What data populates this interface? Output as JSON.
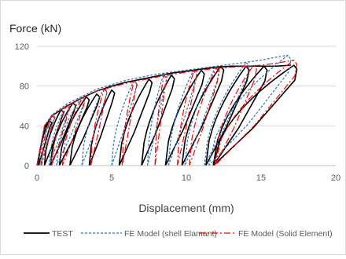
{
  "chart_data": {
    "type": "line",
    "ylabel": "Force (kN)",
    "xlabel": "Displacement (mm)",
    "xlim": [
      0,
      20
    ],
    "ylim": [
      0,
      120
    ],
    "x_ticks": [
      0,
      5,
      10,
      15,
      20
    ],
    "y_ticks": [
      0,
      40,
      80,
      120
    ],
    "grid": "horizontal",
    "legend_position": "bottom",
    "series": [
      {
        "name": "TEST",
        "color": "#000000",
        "dash": "solid",
        "envelope": [
          [
            0,
            0
          ],
          [
            0.5,
            38
          ],
          [
            1,
            50
          ],
          [
            2,
            60
          ],
          [
            3,
            68
          ],
          [
            4,
            75
          ],
          [
            5,
            80
          ],
          [
            6,
            84
          ],
          [
            7,
            87
          ],
          [
            8,
            90
          ],
          [
            9,
            93
          ],
          [
            10,
            95
          ],
          [
            11,
            97
          ],
          [
            12,
            99
          ],
          [
            13,
            100
          ],
          [
            14,
            100
          ],
          [
            15,
            100
          ],
          [
            16,
            100
          ],
          [
            17,
            101
          ]
        ],
        "loops": [
          {
            "peak": [
              0.8,
              45
            ],
            "res": 0.1
          },
          {
            "peak": [
              1.6,
              56
            ],
            "res": 0.5
          },
          {
            "peak": [
              2.4,
              63
            ],
            "res": 0.9
          },
          {
            "peak": [
              3.3,
              69
            ],
            "res": 1.5
          },
          {
            "peak": [
              4.0,
              72
            ],
            "res": 2.2
          },
          {
            "peak": [
              5.0,
              76
            ],
            "res": 3.5
          },
          {
            "peak": [
              7.5,
              87
            ],
            "res": 5.5
          },
          {
            "peak": [
              9.0,
              91
            ],
            "res": 7.0
          },
          {
            "peak": [
              11.0,
              96
            ],
            "res": 8.6
          },
          {
            "peak": [
              12.3,
              100
            ],
            "res": 9.7
          },
          {
            "peak": [
              14.0,
              100
            ],
            "res": 11.3
          },
          {
            "peak": [
              15.2,
              100
            ],
            "res": 11.8
          },
          {
            "peak": [
              17.2,
              101
            ],
            "res": 11.8
          }
        ]
      },
      {
        "name": "FE Model (shell Elamant)",
        "color": "#2E75B6",
        "dash": "3,2",
        "envelope": [
          [
            0,
            0
          ],
          [
            0.5,
            40
          ],
          [
            1,
            51
          ],
          [
            2,
            62
          ],
          [
            4,
            77
          ],
          [
            6,
            86
          ],
          [
            8,
            92
          ],
          [
            10,
            96
          ],
          [
            12,
            100
          ],
          [
            13,
            102
          ],
          [
            14,
            104
          ],
          [
            15,
            106
          ],
          [
            16,
            109
          ],
          [
            16.8,
            111
          ]
        ],
        "loops": [
          {
            "peak": [
              1.0,
              51
            ],
            "res": 0.2
          },
          {
            "peak": [
              2.0,
              62
            ],
            "res": 0.8
          },
          {
            "peak": [
              3.0,
              69
            ],
            "res": 1.3
          },
          {
            "peak": [
              4.5,
              78
            ],
            "res": 3.0
          },
          {
            "peak": [
              6.5,
              86
            ],
            "res": 5.0
          },
          {
            "peak": [
              8.5,
              93
            ],
            "res": 7.4
          },
          {
            "peak": [
              10.5,
              97
            ],
            "res": 8.8
          },
          {
            "peak": [
              12.0,
              100
            ],
            "res": 9.9
          },
          {
            "peak": [
              14.0,
              104
            ],
            "res": 11.2
          },
          {
            "peak": [
              16.8,
              111
            ],
            "res": 11.5
          }
        ]
      },
      {
        "name": "FE Model (Solid Element)",
        "color": "#FF0000",
        "dash": "8,3,2,3",
        "envelope": [
          [
            0,
            0
          ],
          [
            0.5,
            40
          ],
          [
            1,
            50
          ],
          [
            2,
            60
          ],
          [
            4,
            75
          ],
          [
            6,
            83
          ],
          [
            8,
            89
          ],
          [
            10,
            94
          ],
          [
            12,
            98
          ],
          [
            14,
            100
          ],
          [
            15,
            101
          ],
          [
            16,
            103
          ],
          [
            17.2,
            106
          ]
        ],
        "loops": [
          {
            "peak": [
              1.0,
              50
            ],
            "res": 0.3
          },
          {
            "peak": [
              2.0,
              60
            ],
            "res": 1.0
          },
          {
            "peak": [
              3.0,
              67
            ],
            "res": 1.7
          },
          {
            "peak": [
              4.5,
              77
            ],
            "res": 3.6
          },
          {
            "peak": [
              6.5,
              85
            ],
            "res": 5.7
          },
          {
            "peak": [
              8.5,
              91
            ],
            "res": 7.9
          },
          {
            "peak": [
              10.5,
              95
            ],
            "res": 9.4
          },
          {
            "peak": [
              12.0,
              98
            ],
            "res": 10.2
          },
          {
            "peak": [
              14.5,
              101
            ],
            "res": 11.9
          },
          {
            "peak": [
              17.2,
              106
            ],
            "res": 11.9
          }
        ]
      }
    ]
  }
}
